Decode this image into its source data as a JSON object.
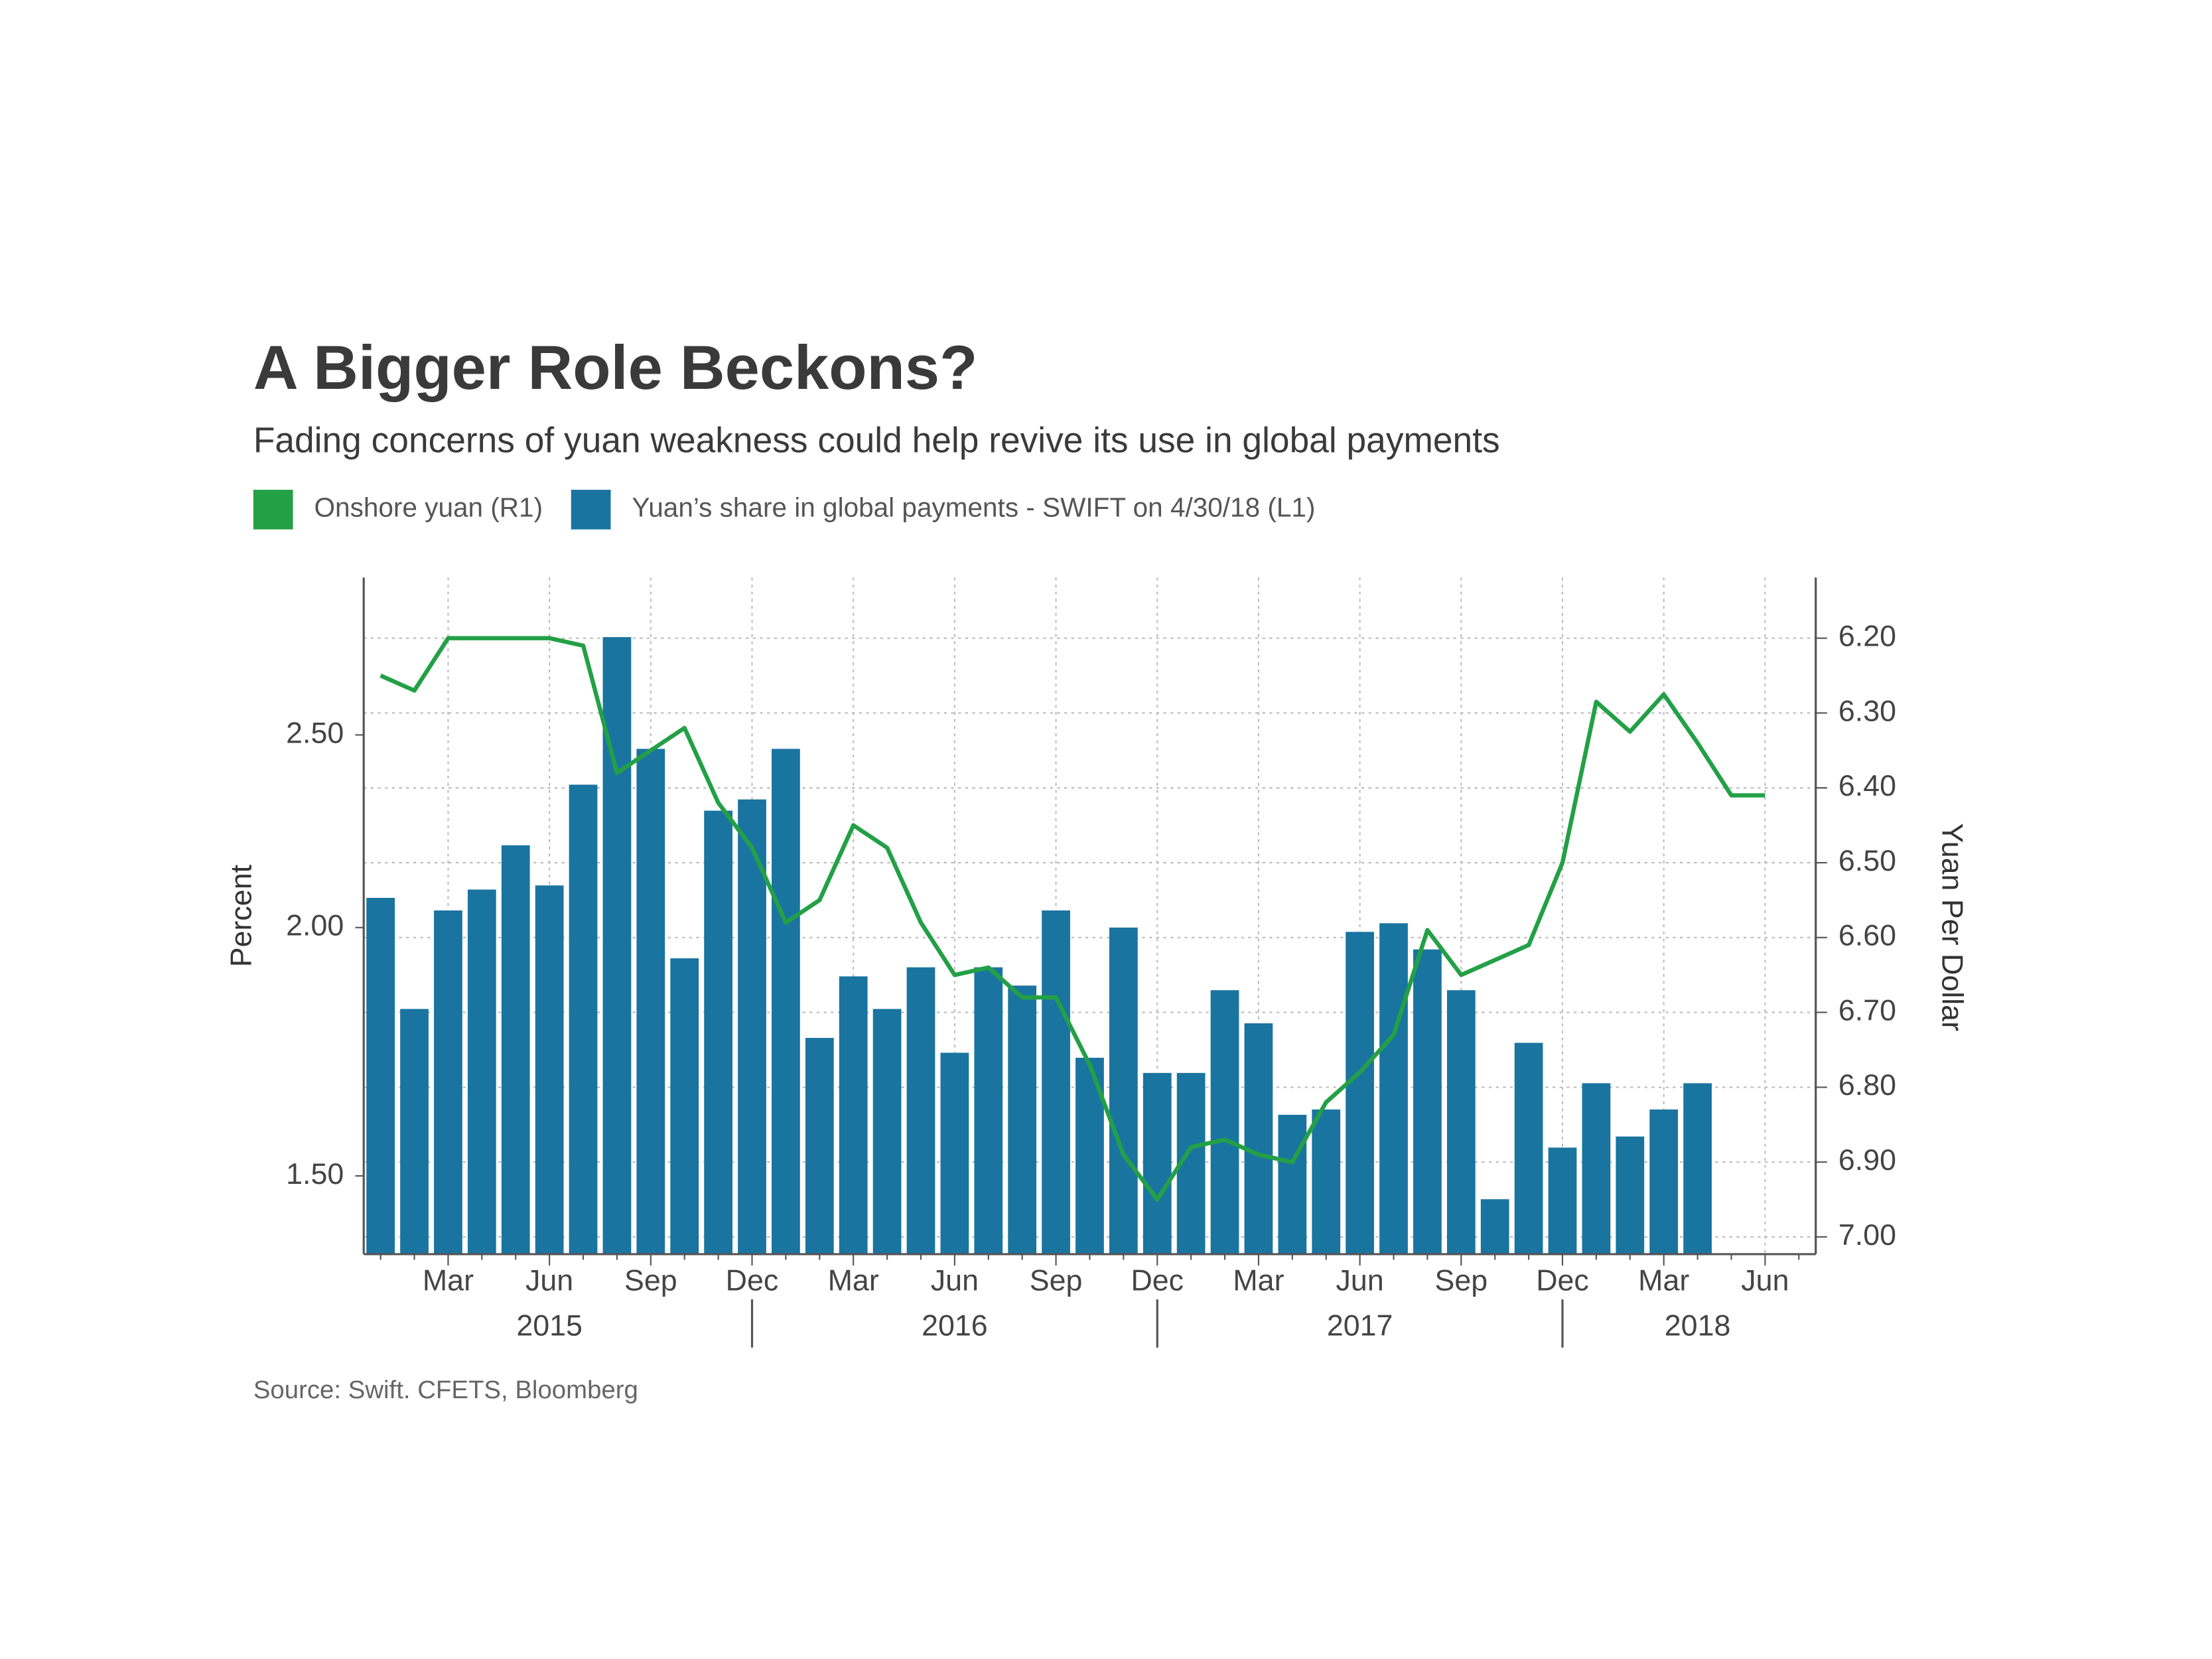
{
  "chart_data": {
    "type": "bar",
    "title": "A Bigger Role Beckons?",
    "subtitle": "Fading concerns of yuan weakness could help revive its use in global payments",
    "ylabel": "Percent",
    "y2label": "Yuan Per Dollar",
    "source": "Source: Swift. CFETS, Bloomberg",
    "categories": [
      null,
      null,
      "Mar",
      null,
      null,
      "Jun",
      null,
      null,
      "Sep",
      null,
      null,
      "Dec",
      null,
      null,
      "Mar",
      null,
      null,
      "Jun",
      null,
      null,
      "Sep",
      null,
      null,
      "Dec",
      null,
      null,
      "Mar",
      null,
      null,
      "Jun",
      null,
      null,
      "Sep",
      null,
      null,
      "Dec",
      null,
      null,
      "Mar",
      null,
      null,
      "Jun",
      null
    ],
    "year_labels": [
      "2015",
      "2016",
      "2017",
      "2018"
    ],
    "series": [
      {
        "name": "Onshore yuan (R1)",
        "type": "line",
        "axis": "y2",
        "color": "#23a046",
        "values": [
          6.25,
          6.27,
          6.2,
          6.2,
          6.2,
          6.2,
          6.21,
          6.38,
          6.35,
          6.32,
          6.42,
          6.48,
          6.58,
          6.55,
          6.45,
          6.48,
          6.58,
          6.65,
          6.64,
          6.68,
          6.68,
          6.77,
          6.89,
          6.95,
          6.88,
          6.87,
          6.89,
          6.9,
          6.82,
          6.78,
          6.73,
          6.59,
          6.65,
          6.63,
          6.61,
          6.5,
          6.285,
          6.325,
          6.275,
          6.34,
          6.41,
          6.41,
          null
        ]
      },
      {
        "name": "Yuan’s share in global payments - SWIFT on 4/30/18 (L1)",
        "type": "bar",
        "axis": "y",
        "color": "#1a74a0",
        "values": [
          2.07,
          1.82,
          2.04,
          2.09,
          2.2,
          2.1,
          2.36,
          2.8,
          2.46,
          1.93,
          2.29,
          2.32,
          2.46,
          1.76,
          1.89,
          1.82,
          1.91,
          1.73,
          1.91,
          1.87,
          2.04,
          1.72,
          2.0,
          1.69,
          1.69,
          1.86,
          1.79,
          1.61,
          1.62,
          1.99,
          2.01,
          1.95,
          1.86,
          1.46,
          1.75,
          1.55,
          1.67,
          1.57,
          1.62,
          1.67,
          null,
          null,
          null
        ]
      }
    ],
    "ylim": [
      1.37,
      3.0
    ],
    "yscale": "log",
    "yticks": [
      {
        "value": 1.5,
        "label": "1.50"
      },
      {
        "value": 2,
        "label": "2.00"
      },
      {
        "value": 2.5,
        "label": "2.50"
      }
    ],
    "y2lim": [
      7.023,
      6.119
    ],
    "y2ticks": [
      {
        "value": 6.2,
        "label": "6.20"
      },
      {
        "value": 6.3,
        "label": "6.30"
      },
      {
        "value": 6.4,
        "label": "6.40"
      },
      {
        "value": 6.5,
        "label": "6.50"
      },
      {
        "value": 6.6,
        "label": "6.60"
      },
      {
        "value": 6.7,
        "label": "6.70"
      },
      {
        "value": 6.8,
        "label": "6.80"
      },
      {
        "value": 6.9,
        "label": "6.90"
      },
      {
        "value": 7,
        "label": "7.00"
      }
    ],
    "grid": true,
    "legend": "top-left"
  }
}
